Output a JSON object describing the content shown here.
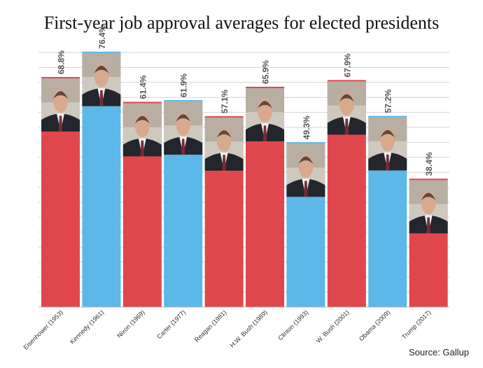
{
  "title": "First-year job approval averages for elected presidents",
  "source": "Source: Gallup",
  "colors": {
    "republican": "#e0474c",
    "democrat": "#5bb8e8",
    "grid": "#d4d4d4",
    "label": "#555555"
  },
  "chart_data": {
    "type": "bar",
    "title": "First-year job approval averages for elected presidents",
    "xlabel": "",
    "ylabel": "",
    "ylim": [
      0,
      100
    ],
    "grid": true,
    "categories": [
      "Eisenhower (1953)",
      "Kennedy (1961)",
      "Nixon (1969)",
      "Carter (1977)",
      "Reagan (1981)",
      "H.W. Bush (1989)",
      "Clinton (1993)",
      "W. Bush (2001)",
      "Obama (2009)",
      "Trump (2017)"
    ],
    "values": [
      68.8,
      76.4,
      61.4,
      61.9,
      57.1,
      65.9,
      49.3,
      67.9,
      57.2,
      38.4
    ],
    "value_labels": [
      "68.8%",
      "76.4%",
      "61.4%",
      "61.9%",
      "57.1%",
      "65.9%",
      "49.3%",
      "67.9%",
      "57.2%",
      "38.4%"
    ],
    "party": [
      "republican",
      "democrat",
      "republican",
      "democrat",
      "republican",
      "republican",
      "democrat",
      "republican",
      "democrat",
      "republican"
    ],
    "portraits": [
      "portrait-icon",
      "portrait-icon",
      "portrait-icon",
      "portrait-icon",
      "portrait-icon",
      "portrait-icon",
      "portrait-icon",
      "portrait-icon",
      "portrait-icon",
      "portrait-icon"
    ]
  }
}
